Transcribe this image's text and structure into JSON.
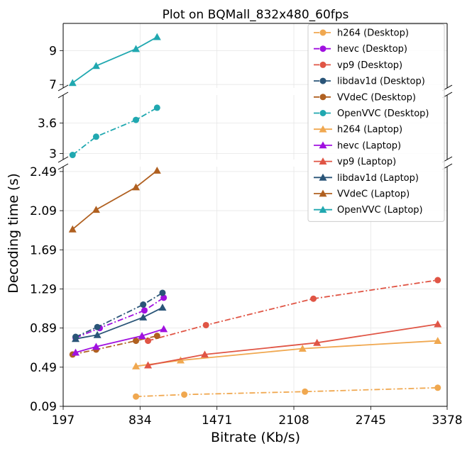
{
  "chart_data": {
    "type": "line",
    "title": "Plot on BQMall_832x480_60fps",
    "xlabel": "Bitrate (Kb/s)",
    "ylabel": "Decoding time (s)",
    "xlim": [
      197,
      3378
    ],
    "x_ticks": [
      "197",
      "834",
      "1471",
      "2108",
      "2745",
      "3378"
    ],
    "broken_y_axis": true,
    "panels": [
      {
        "name": "top",
        "ylim": [
          6.8,
          10.6
        ],
        "y_ticks": [
          "7",
          "9"
        ]
      },
      {
        "name": "middle",
        "ylim": [
          2.88,
          4.15
        ],
        "y_ticks": [
          "3",
          "3.6"
        ]
      },
      {
        "name": "bottom",
        "ylim": [
          0.09,
          2.54
        ],
        "y_ticks": [
          "0.09",
          "0.49",
          "0.89",
          "1.29",
          "1.69",
          "2.09",
          "2.49"
        ]
      }
    ],
    "grid": true,
    "legend_position": "top-right",
    "series": [
      {
        "name": "h264 (Desktop)",
        "color": "#f0a850",
        "linestyle": "dashdot",
        "marker": "circle",
        "panel": "bottom",
        "x": [
          800,
          1200,
          2200,
          3300
        ],
        "y": [
          0.19,
          0.21,
          0.24,
          0.28
        ]
      },
      {
        "name": "hevc (Desktop)",
        "color": "#a010e0",
        "linestyle": "dashdot",
        "marker": "circle",
        "panel": "bottom",
        "x": [
          300,
          500,
          870,
          1030
        ],
        "y": [
          0.79,
          0.89,
          1.07,
          1.2
        ]
      },
      {
        "name": "vp9 (Desktop)",
        "color": "#e05545",
        "linestyle": "dashdot",
        "marker": "circle",
        "panel": "bottom",
        "x": [
          900,
          1380,
          2270,
          3300
        ],
        "y": [
          0.76,
          0.92,
          1.19,
          1.38
        ]
      },
      {
        "name": "libdav1d (Desktop)",
        "color": "#2a5578",
        "linestyle": "dashdot",
        "marker": "circle",
        "panel": "bottom",
        "x": [
          300,
          480,
          860,
          1020
        ],
        "y": [
          0.8,
          0.9,
          1.13,
          1.25
        ]
      },
      {
        "name": "VVdeC (Desktop)",
        "color": "#b06020",
        "linestyle": "dashdot",
        "marker": "circle",
        "panel": "bottom",
        "x": [
          275,
          470,
          800,
          975
        ],
        "y": [
          0.62,
          0.67,
          0.76,
          0.81
        ]
      },
      {
        "name": "OpenVVC (Desktop)",
        "color": "#20a8b0",
        "linestyle": "dashdot",
        "marker": "circle",
        "panel": "middle",
        "x": [
          275,
          470,
          800,
          975
        ],
        "y": [
          2.97,
          3.33,
          3.66,
          3.9
        ]
      },
      {
        "name": "h264 (Laptop)",
        "color": "#f0a850",
        "linestyle": "solid",
        "marker": "triangle",
        "panel": "bottom",
        "x": [
          800,
          1170,
          2180,
          3300
        ],
        "y": [
          0.5,
          0.56,
          0.68,
          0.76
        ]
      },
      {
        "name": "hevc (Laptop)",
        "color": "#a010e0",
        "linestyle": "solid",
        "marker": "triangle",
        "panel": "bottom",
        "x": [
          300,
          470,
          850,
          1030
        ],
        "y": [
          0.64,
          0.7,
          0.81,
          0.88
        ]
      },
      {
        "name": "vp9 (Laptop)",
        "color": "#e05545",
        "linestyle": "solid",
        "marker": "triangle",
        "panel": "bottom",
        "x": [
          900,
          1370,
          2300,
          3300
        ],
        "y": [
          0.51,
          0.62,
          0.74,
          0.93
        ]
      },
      {
        "name": "libdav1d (Laptop)",
        "color": "#2a5578",
        "linestyle": "solid",
        "marker": "triangle",
        "panel": "bottom",
        "x": [
          300,
          480,
          860,
          1020
        ],
        "y": [
          0.78,
          0.82,
          1.0,
          1.1
        ]
      },
      {
        "name": "VVdeC (Laptop)",
        "color": "#b06020",
        "linestyle": "solid",
        "marker": "triangle",
        "panel": "bottom",
        "x": [
          275,
          470,
          800,
          975
        ],
        "y": [
          1.9,
          2.1,
          2.33,
          2.5
        ]
      },
      {
        "name": "OpenVVC (Laptop)",
        "color": "#20a8b0",
        "linestyle": "solid",
        "marker": "triangle",
        "panel": "top",
        "x": [
          275,
          470,
          800,
          975
        ],
        "y": [
          7.1,
          8.1,
          9.1,
          9.8
        ]
      }
    ]
  }
}
